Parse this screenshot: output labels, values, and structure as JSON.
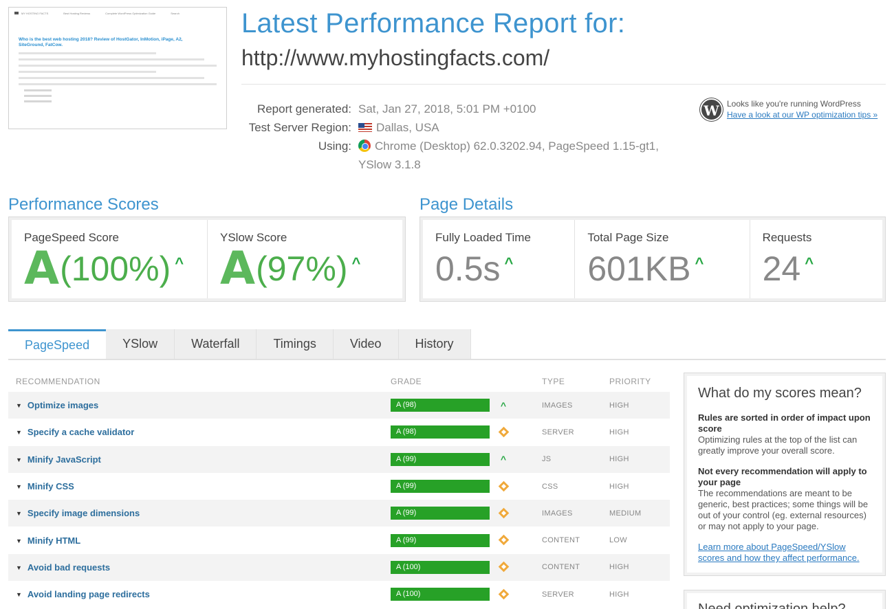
{
  "thumbnail": {
    "nav": [
      "MY HOSTING FACTS",
      "Best Hosting Reviews",
      "Complete WordPress Optimization Guide",
      "Search"
    ],
    "title": "Who is the best web hosting 2018? Review of HostGator, InMotion, iPage, A2, SiteGround, FatCow."
  },
  "header": {
    "title": "Latest Performance Report for:",
    "url": "http://www.myhostingfacts.com/"
  },
  "meta": {
    "generated_label": "Report generated:",
    "generated_value": "Sat, Jan 27, 2018, 5:01 PM +0100",
    "region_label": "Test Server Region:",
    "region_value": "Dallas, USA",
    "using_label": "Using:",
    "using_value": "Chrome (Desktop) 62.0.3202.94, PageSpeed 1.15-gt1, YSlow 3.1.8"
  },
  "wordpress": {
    "text": "Looks like you're running WordPress",
    "link": "Have a look at our WP optimization tips »",
    "icon": "W"
  },
  "performance": {
    "heading": "Performance Scores",
    "pagespeed_label": "PageSpeed Score",
    "pagespeed_grade": "A",
    "pagespeed_pct": "(100%)",
    "yslow_label": "YSlow Score",
    "yslow_grade": "A",
    "yslow_pct": "(97%)"
  },
  "details": {
    "heading": "Page Details",
    "load_label": "Fully Loaded Time",
    "load_value": "0.5s",
    "size_label": "Total Page Size",
    "size_value": "601KB",
    "req_label": "Requests",
    "req_value": "24"
  },
  "tabs": [
    "PageSpeed",
    "YSlow",
    "Waterfall",
    "Timings",
    "Video",
    "History"
  ],
  "table": {
    "headers": {
      "rec": "RECOMMENDATION",
      "grade": "GRADE",
      "type": "TYPE",
      "priority": "PRIORITY"
    },
    "rows": [
      {
        "name": "Optimize images",
        "grade": "A (98)",
        "trend": "up",
        "type": "IMAGES",
        "priority": "HIGH"
      },
      {
        "name": "Specify a cache validator",
        "grade": "A (98)",
        "trend": "same",
        "type": "SERVER",
        "priority": "HIGH"
      },
      {
        "name": "Minify JavaScript",
        "grade": "A (99)",
        "trend": "up",
        "type": "JS",
        "priority": "HIGH"
      },
      {
        "name": "Minify CSS",
        "grade": "A (99)",
        "trend": "same",
        "type": "CSS",
        "priority": "HIGH"
      },
      {
        "name": "Specify image dimensions",
        "grade": "A (99)",
        "trend": "same",
        "type": "IMAGES",
        "priority": "MEDIUM"
      },
      {
        "name": "Minify HTML",
        "grade": "A (99)",
        "trend": "same",
        "type": "CONTENT",
        "priority": "LOW"
      },
      {
        "name": "Avoid bad requests",
        "grade": "A (100)",
        "trend": "same",
        "type": "CONTENT",
        "priority": "HIGH"
      },
      {
        "name": "Avoid landing page redirects",
        "grade": "A (100)",
        "trend": "same",
        "type": "SERVER",
        "priority": "HIGH"
      }
    ]
  },
  "sidebar": {
    "title": "What do my scores mean?",
    "b1": "Rules are sorted in order of impact upon score",
    "p1": "Optimizing rules at the top of the list can greatly improve your overall score.",
    "b2": "Not every recommendation will apply to your page",
    "p2": "The recommendations are meant to be generic, best practices; some things will be out of your control (eg. external resources) or may not apply to your page.",
    "link": "Learn more about PageSpeed/YSlow scores and how they affect performance.",
    "next_title": "Need optimization help?"
  },
  "colors": {
    "accent": "#3e94cf",
    "grade_green": "#27a127",
    "up": "#28a745",
    "same": "#f0a93b"
  }
}
